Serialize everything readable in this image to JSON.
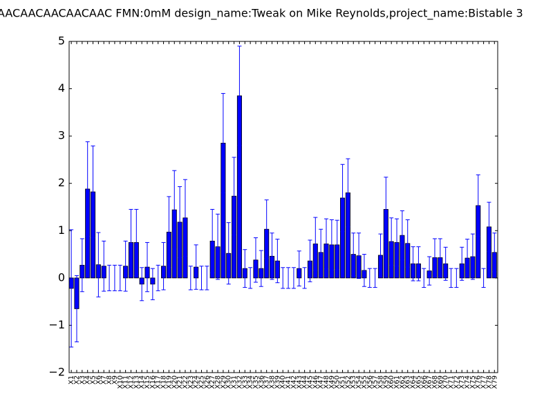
{
  "chart_data": {
    "type": "bar",
    "title": "AACAACAACAACAAC  FMN:0mM  design_name:Tweak on Mike Reynolds,project_name:Bistable 3",
    "categories": [
      "X1",
      "X2",
      "X3",
      "X4",
      "X5",
      "X6",
      "X7",
      "X8",
      "X9",
      "X10",
      "X11",
      "X12",
      "X13",
      "X14",
      "X15",
      "X16",
      "X17",
      "X18",
      "X19",
      "X20",
      "X21",
      "X22",
      "X23",
      "X24",
      "X25",
      "X26",
      "X27",
      "X28",
      "X29",
      "X30",
      "X31",
      "X32",
      "X33",
      "X34",
      "X35",
      "X36",
      "X37",
      "X38",
      "X39",
      "X40",
      "X41",
      "X42",
      "X43",
      "X44",
      "X45",
      "X46",
      "X47",
      "X48",
      "X49",
      "X50",
      "X51",
      "X52",
      "X53",
      "X54",
      "X55",
      "X56",
      "X57",
      "X58",
      "X59",
      "X60",
      "X61",
      "X62",
      "X63",
      "X64",
      "X65",
      "X66",
      "X67",
      "X68",
      "X69",
      "X70",
      "X71",
      "X72",
      "X73",
      "X74",
      "X75",
      "X76",
      "X77",
      "X78",
      "X79"
    ],
    "values": [
      -0.22,
      -0.65,
      0.27,
      1.88,
      1.82,
      0.28,
      0.25,
      0,
      0,
      0,
      0.25,
      0.75,
      0.75,
      -0.13,
      0.23,
      -0.13,
      0,
      0.25,
      0.97,
      1.44,
      1.18,
      1.27,
      0,
      0.23,
      0,
      0,
      0.78,
      0.66,
      2.85,
      0.52,
      1.73,
      3.85,
      0.2,
      0,
      0.38,
      0.2,
      1.03,
      0.46,
      0.36,
      0,
      0,
      0,
      0.2,
      0,
      0.36,
      0.72,
      0.54,
      0.72,
      0.7,
      0.7,
      1.69,
      1.8,
      0.5,
      0.47,
      0.16,
      0,
      0,
      0.48,
      1.45,
      0.77,
      0.75,
      0.9,
      0.73,
      0.3,
      0.3,
      0,
      0.15,
      0.43,
      0.43,
      0.3,
      0,
      0,
      0.3,
      0.42,
      0.45,
      1.53,
      0,
      1.08,
      0.54
    ],
    "errors": [
      1.24,
      0.7,
      0.56,
      1.0,
      0.97,
      0.68,
      0.53,
      0.27,
      0.27,
      0.27,
      0.53,
      0.7,
      0.7,
      0.35,
      0.52,
      0.33,
      0.27,
      0.5,
      0.75,
      0.83,
      0.75,
      0.81,
      0.25,
      0.47,
      0.25,
      0.25,
      0.67,
      0.69,
      1.05,
      0.65,
      0.82,
      1.05,
      0.4,
      0.22,
      0.47,
      0.38,
      0.62,
      0.49,
      0.46,
      0.22,
      0.22,
      0.22,
      0.37,
      0.22,
      0.44,
      0.56,
      0.49,
      0.53,
      0.53,
      0.52,
      0.71,
      0.72,
      0.45,
      0.48,
      0.34,
      0.2,
      0.2,
      0.45,
      0.68,
      0.5,
      0.5,
      0.52,
      0.5,
      0.36,
      0.36,
      0.2,
      0.3,
      0.4,
      0.4,
      0.35,
      0.2,
      0.2,
      0.35,
      0.4,
      0.48,
      0.65,
      0.2,
      0.52,
      0.41
    ],
    "color": "#0000ff",
    "ylim": [
      -2,
      5
    ],
    "yticks": [
      {
        "value": -2,
        "label": "−2"
      },
      {
        "value": -1,
        "label": "−1"
      },
      0,
      1,
      2,
      3,
      4,
      5
    ]
  }
}
